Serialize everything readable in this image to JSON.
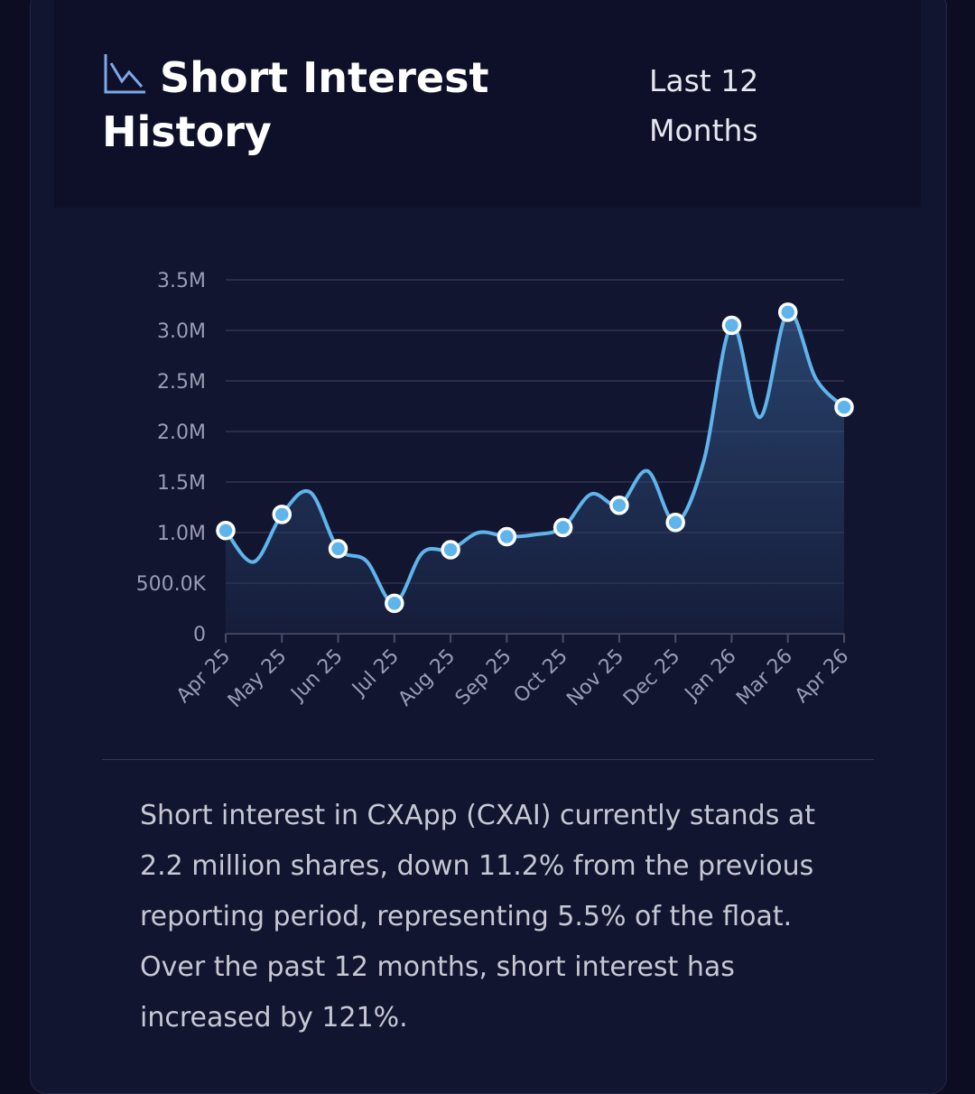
{
  "header": {
    "title": "Short Interest History",
    "period": "Last 12 Months"
  },
  "chart_data": {
    "type": "line",
    "categories": [
      "Apr 25",
      null,
      "May 25",
      null,
      "Jun 25",
      null,
      "Jul 25",
      null,
      "Aug 25",
      null,
      "Sep 25",
      null,
      "Oct 25",
      null,
      "Nov 25",
      null,
      "Dec 25",
      null,
      "Jan 26",
      null,
      "Mar 26",
      null,
      "Apr 26"
    ],
    "values": [
      1020000,
      710000,
      1180000,
      1400000,
      840000,
      720000,
      300000,
      800000,
      830000,
      1000000,
      960000,
      980000,
      1050000,
      1380000,
      1270000,
      1610000,
      1100000,
      1700000,
      3050000,
      2140000,
      3180000,
      2520000,
      2240000
    ],
    "color": "#5fb4ec",
    "ylim": [
      0,
      3500000
    ],
    "yticks": [
      0,
      {
        "value": 500000,
        "label": "500.0K"
      },
      {
        "value": 1000000,
        "label": "1.0M"
      },
      {
        "value": 1500000,
        "label": "1.5M"
      },
      {
        "value": 2000000,
        "label": "2.0M"
      },
      {
        "value": 2500000,
        "label": "2.5M"
      },
      {
        "value": 3000000,
        "label": "3.0M"
      },
      {
        "value": 3500000,
        "label": "3.5M"
      }
    ],
    "grid": true
  },
  "summary": "Short interest in CXApp (CXAI) currently stands at 2.2 million shares, down 11.2% from the previous reporting period, representing 5.5% of the float. Over the past 12 months, short interest has increased by 121%."
}
